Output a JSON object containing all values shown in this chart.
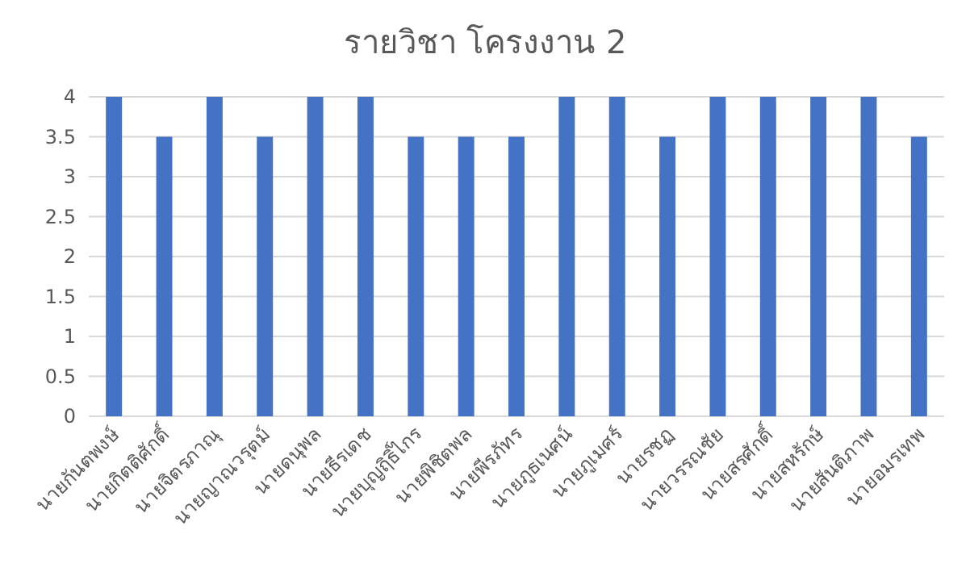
{
  "chart_data": {
    "type": "bar",
    "title": "รายวิชา โครงงาน 2",
    "categories": [
      "นายกันตพงษ์",
      "นายกิตติศักดิ์",
      "นายจิตรภาณุ",
      "นายญาณวรุตม์",
      "นายดนุพล",
      "นายธีรเดช",
      "นายบุญฤิธิ์ไกร",
      "นายพิชิตพล",
      "นายพีรภัทร",
      "นายภูธเนศน์",
      "นายภูเมศร์",
      "นายรชฏ",
      "นายวรรณชัย",
      "นายสรศักดิ์",
      "นายสหรักษ์",
      "นายสันติภาพ",
      "นายอมรเทพ"
    ],
    "values": [
      4,
      3.5,
      4,
      3.5,
      4,
      4,
      3.5,
      3.5,
      3.5,
      4,
      4,
      3.5,
      4,
      4,
      4,
      4,
      3.5
    ],
    "color": "#4472c4",
    "ylim": [
      0,
      4
    ],
    "yticks": [
      0,
      0.5,
      1,
      1.5,
      2,
      2.5,
      3,
      3.5,
      4
    ],
    "grid": "y"
  }
}
